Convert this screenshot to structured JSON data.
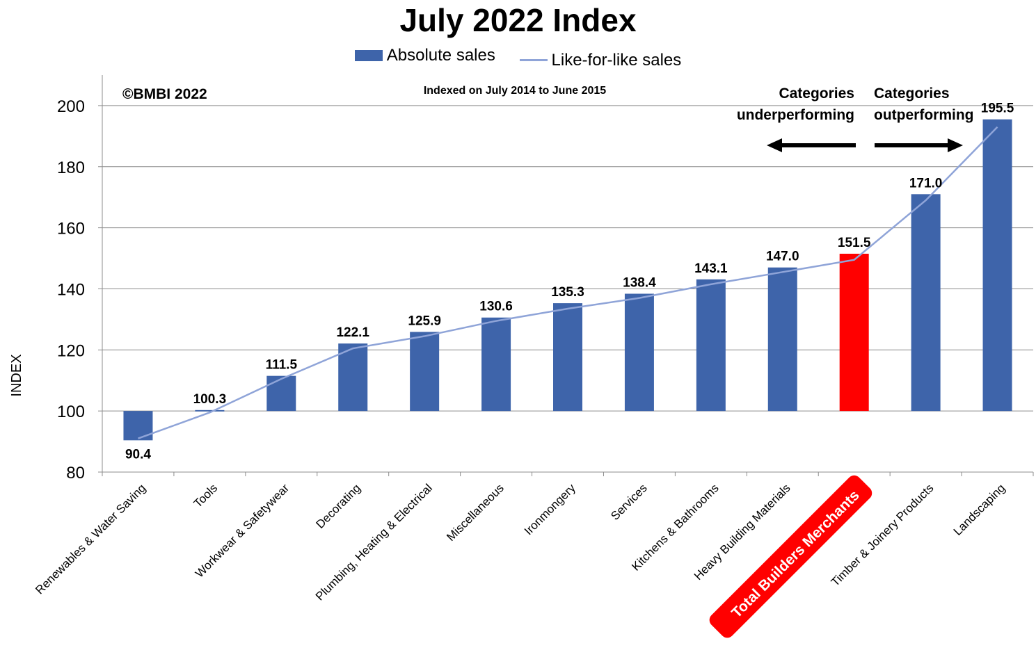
{
  "chart_data": {
    "type": "bar",
    "title": "July 2022 Index",
    "ylabel": "INDEX",
    "xlabel": "",
    "subtitle": "Indexed on July 2014 to June 2015",
    "copyright": "©BMBI 2022",
    "ylim": [
      80,
      210
    ],
    "yticks": [
      80,
      100,
      120,
      140,
      160,
      180,
      200
    ],
    "baseline": 100,
    "grid": true,
    "legend_position": "top",
    "categories": [
      "Renewables & Water Saving",
      "Tools",
      "Workwear & Safetywear",
      "Decorating",
      "Plumbing, Heating & Electrical",
      "Miscellaneous",
      "Ironmongery",
      "Services",
      "Kitchens & Bathrooms",
      "Heavy Building Materials",
      "Total Builders Merchants",
      "Timber & Joinery Products",
      "Landscaping"
    ],
    "highlight_category": "Total Builders Merchants",
    "series": [
      {
        "name": "Absolute sales",
        "type": "bar",
        "color": "#3E64AA",
        "values": [
          90.4,
          100.3,
          111.5,
          122.1,
          125.9,
          130.6,
          135.3,
          138.4,
          143.1,
          147.0,
          151.5,
          171.0,
          195.5
        ],
        "labels": [
          "90.4",
          "100.3",
          "111.5",
          "122.1",
          "125.9",
          "130.6",
          "135.3",
          "138.4",
          "143.1",
          "147.0",
          "151.5",
          "171.0",
          "195.5"
        ]
      },
      {
        "name": "Like-for-like sales",
        "type": "line",
        "color": "#8FA4D8",
        "values": [
          91,
          99.5,
          110.5,
          120.5,
          124.5,
          129.5,
          133.5,
          137,
          141.5,
          145.5,
          149.5,
          169,
          193
        ]
      }
    ],
    "highlight_color": "#FF0000",
    "annotations": {
      "left_line1": "Categories",
      "left_line2": "underperforming",
      "right_line1": "Categories",
      "right_line2": "outperforming"
    }
  }
}
